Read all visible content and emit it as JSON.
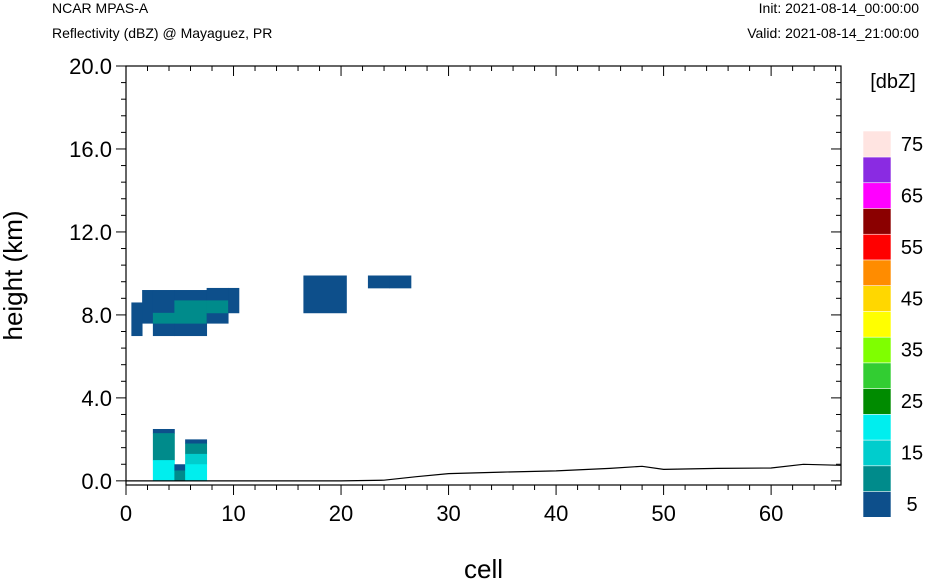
{
  "header": {
    "model": "NCAR MPAS-A",
    "field": "Reflectivity (dBZ) @ Mayaguez, PR",
    "init": "Init: 2021-08-14_00:00:00",
    "valid": "Valid: 2021-08-14_21:00:00"
  },
  "chart_data": {
    "type": "heatmap",
    "xlabel": "cell",
    "ylabel": "height (km)",
    "xlim": [
      0,
      66.5
    ],
    "ylim": [
      -0.2,
      20.0
    ],
    "x_ticks": [
      0,
      10,
      20,
      30,
      40,
      50,
      60
    ],
    "y_ticks": [
      0.0,
      4.0,
      8.0,
      12.0,
      16.0,
      20.0
    ],
    "y_tick_labels": [
      "0.0",
      "4.0",
      "8.0",
      "12.0",
      "16.0",
      "20.0"
    ],
    "grid": false,
    "colorbar": {
      "title": "[dbZ]",
      "levels": [
        0,
        5,
        10,
        15,
        20,
        25,
        30,
        35,
        40,
        45,
        50,
        55,
        60,
        65,
        70,
        75,
        80
      ],
      "labels": [
        "5",
        "15",
        "25",
        "35",
        "45",
        "55",
        "65",
        "75"
      ],
      "colors": [
        "#0d4f8b",
        "#008b8b",
        "#00cdcd",
        "#00eeee",
        "#008b00",
        "#32cd32",
        "#7fff00",
        "#ffff00",
        "#ffd700",
        "#ff8c00",
        "#ff0000",
        "#8b0000",
        "#ff00ff",
        "#8a2be2",
        "#ffe4e1"
      ]
    },
    "reflectivity_cells": [
      {
        "x0": 0.5,
        "x1": 1.5,
        "y0": 7.0,
        "y1": 8.6,
        "dbz": 2
      },
      {
        "x0": 1.5,
        "x1": 2.5,
        "y0": 7.6,
        "y1": 9.2,
        "dbz": 2
      },
      {
        "x0": 2.5,
        "x1": 4.5,
        "y0": 7.0,
        "y1": 7.6,
        "dbz": 2
      },
      {
        "x0": 2.5,
        "x1": 4.5,
        "y0": 8.1,
        "y1": 9.2,
        "dbz": 2
      },
      {
        "x0": 2.5,
        "x1": 4.5,
        "y0": 7.6,
        "y1": 8.1,
        "dbz": 7
      },
      {
        "x0": 4.5,
        "x1": 7.5,
        "y0": 7.0,
        "y1": 7.6,
        "dbz": 2
      },
      {
        "x0": 4.5,
        "x1": 7.5,
        "y0": 8.7,
        "y1": 9.2,
        "dbz": 2
      },
      {
        "x0": 4.5,
        "x1": 7.5,
        "y0": 7.6,
        "y1": 8.7,
        "dbz": 7
      },
      {
        "x0": 7.5,
        "x1": 9.5,
        "y0": 7.6,
        "y1": 8.1,
        "dbz": 2
      },
      {
        "x0": 7.5,
        "x1": 9.5,
        "y0": 8.7,
        "y1": 9.3,
        "dbz": 2
      },
      {
        "x0": 7.5,
        "x1": 9.5,
        "y0": 8.1,
        "y1": 8.7,
        "dbz": 7
      },
      {
        "x0": 9.5,
        "x1": 10.5,
        "y0": 8.1,
        "y1": 9.3,
        "dbz": 2
      },
      {
        "x0": 16.5,
        "x1": 20.5,
        "y0": 8.1,
        "y1": 9.9,
        "dbz": 2
      },
      {
        "x0": 22.5,
        "x1": 24.5,
        "y0": 9.3,
        "y1": 9.9,
        "dbz": 2
      },
      {
        "x0": 24.5,
        "x1": 26.5,
        "y0": 9.3,
        "y1": 9.9,
        "dbz": 2
      },
      {
        "x0": 2.5,
        "x1": 4.5,
        "y0": 2.3,
        "y1": 2.5,
        "dbz": 2
      },
      {
        "x0": 2.5,
        "x1": 4.5,
        "y0": 1.0,
        "y1": 2.3,
        "dbz": 8
      },
      {
        "x0": 2.5,
        "x1": 4.5,
        "y0": 0.0,
        "y1": 1.0,
        "dbz": 18
      },
      {
        "x0": 4.5,
        "x1": 5.5,
        "y0": 0.5,
        "y1": 0.8,
        "dbz": 2
      },
      {
        "x0": 4.5,
        "x1": 5.5,
        "y0": 0.0,
        "y1": 0.5,
        "dbz": 8
      },
      {
        "x0": 5.5,
        "x1": 7.5,
        "y0": 1.8,
        "y1": 2.0,
        "dbz": 2
      },
      {
        "x0": 5.5,
        "x1": 7.5,
        "y0": 1.3,
        "y1": 1.8,
        "dbz": 8
      },
      {
        "x0": 5.5,
        "x1": 7.5,
        "y0": 0.8,
        "y1": 1.3,
        "dbz": 12
      },
      {
        "x0": 5.5,
        "x1": 7.5,
        "y0": 0.0,
        "y1": 0.8,
        "dbz": 18
      }
    ],
    "terrain": {
      "x": [
        0,
        10,
        20,
        24,
        27,
        30,
        35,
        40,
        45,
        48,
        50,
        55,
        60,
        63,
        66.5
      ],
      "y": [
        0.0,
        0.0,
        0.0,
        0.03,
        0.2,
        0.35,
        0.42,
        0.48,
        0.6,
        0.7,
        0.55,
        0.6,
        0.62,
        0.8,
        0.75
      ]
    }
  }
}
